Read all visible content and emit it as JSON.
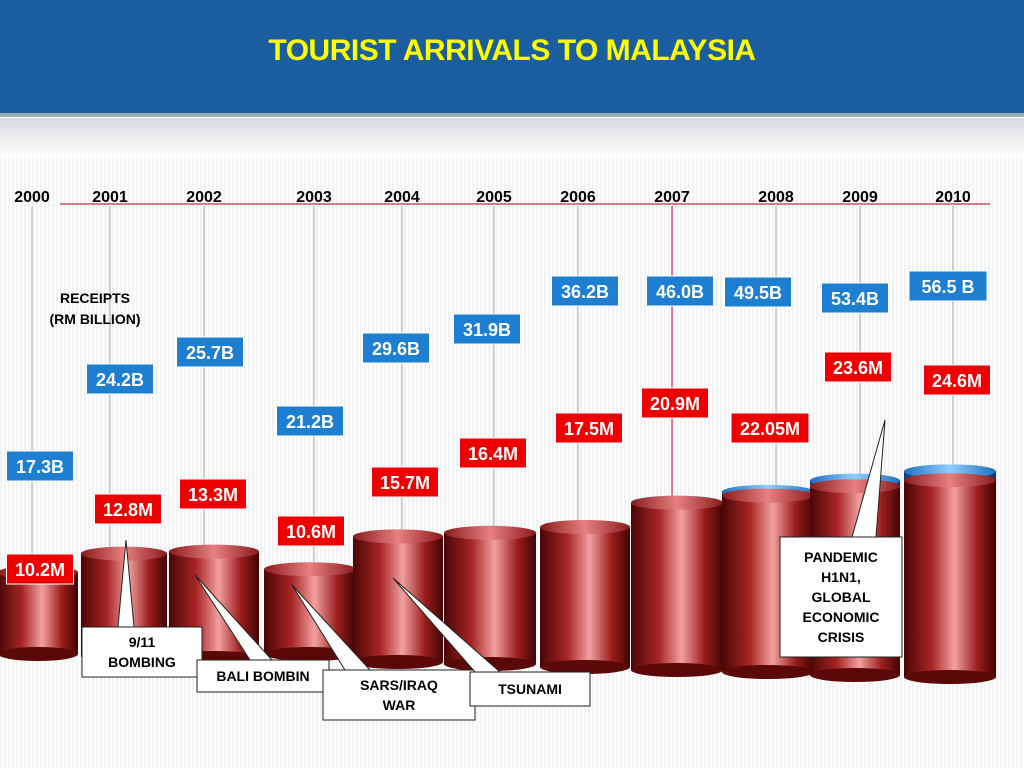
{
  "header": {
    "title": "TOURIST ARRIVALS TO MALAYSIA",
    "band_color": "#1a5ea0",
    "title_color": "#ffff00"
  },
  "chart_data": {
    "type": "bar",
    "title": "TOURIST ARRIVALS TO MALAYSIA",
    "categories": [
      "2000",
      "2001",
      "2002",
      "2003",
      "2004",
      "2005",
      "2006",
      "2007",
      "2008",
      "2009",
      "2010"
    ],
    "series": [
      {
        "name": "RECEIPTS (RM BILLION)",
        "values": [
          17.3,
          24.2,
          25.7,
          21.2,
          29.6,
          31.9,
          36.2,
          46.0,
          49.5,
          53.4,
          56.5
        ],
        "labels": [
          "17.3B",
          "24.2B",
          "25.7B",
          "21.2B",
          "29.6B",
          "31.9B",
          "36.2B",
          "46.0B",
          "49.5B",
          "53.4B",
          "56.5 B"
        ],
        "color": "#1e7fd0"
      },
      {
        "name": "",
        "values": [
          10.2,
          12.8,
          13.3,
          10.6,
          15.7,
          16.4,
          17.5,
          20.9,
          22.05,
          23.6,
          24.6
        ],
        "labels": [
          "10.2M",
          "12.8M",
          "13.3M",
          "10.6M",
          "15.7M",
          "16.4M",
          "17.5M",
          "20.9M",
          "22.05M",
          "23.6M",
          "24.6M"
        ],
        "color": "#9a1a1a"
      }
    ],
    "legend": {
      "text": [
        "RECEIPTS",
        "(RM BILLION)"
      ],
      "placement": "left"
    },
    "annotations": [
      {
        "year": "2001",
        "text": [
          "9/11",
          "BOMBING"
        ]
      },
      {
        "year": "2002",
        "text": [
          "BALI BOMBIN"
        ]
      },
      {
        "year": "2003",
        "text": [
          "SARS/IRAQ",
          "WAR"
        ]
      },
      {
        "year": "2004",
        "text": [
          "TSUNAMI"
        ]
      },
      {
        "year": "2009",
        "text": [
          "PANDEMIC",
          "H1N1,",
          "GLOBAL",
          "ECONOMIC",
          "CRISIS"
        ]
      }
    ]
  }
}
